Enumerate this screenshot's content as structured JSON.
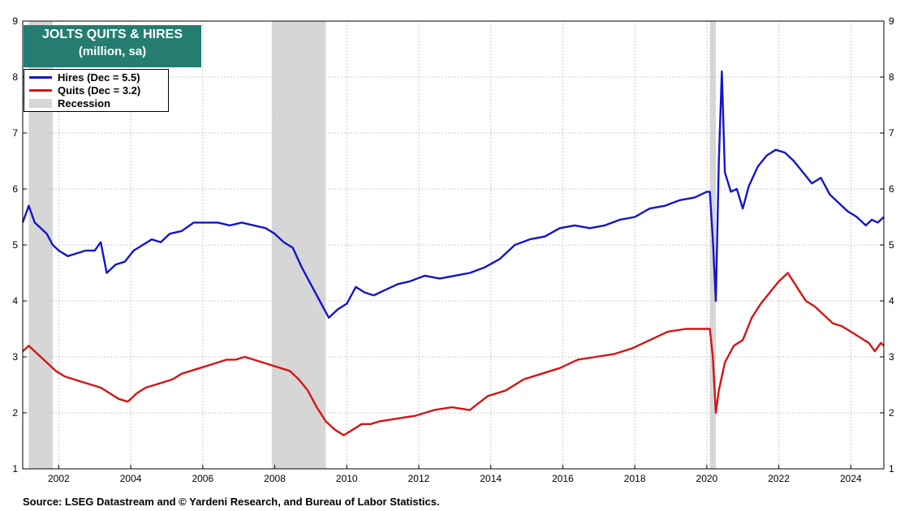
{
  "chart_data": {
    "type": "line",
    "title": "JOLTS QUITS & HIRES",
    "subtitle": "(million, sa)",
    "ylim": [
      1,
      9
    ],
    "yticks": [
      "1",
      "2",
      "3",
      "4",
      "5",
      "6",
      "7",
      "8",
      "9"
    ],
    "xlim": [
      "2001-01",
      "2024-12"
    ],
    "xticks": [
      "2002",
      "2004",
      "2006",
      "2008",
      "2010",
      "2012",
      "2014",
      "2016",
      "2018",
      "2020",
      "2022",
      "2024"
    ],
    "grid": true,
    "legend_position": "top-left",
    "recession_label": "Recession",
    "recession_color": "#d6d6d6",
    "recessions": [
      [
        "2001-03",
        "2001-11"
      ],
      [
        "2007-12",
        "2009-06"
      ],
      [
        "2020-02",
        "2020-04"
      ]
    ],
    "series": [
      {
        "name": "Hires (Dec = 5.5)",
        "color": "#1414c8",
        "points": [
          [
            "2001-01",
            5.4
          ],
          [
            "2001-03",
            5.7
          ],
          [
            "2001-05",
            5.4
          ],
          [
            "2001-07",
            5.3
          ],
          [
            "2001-09",
            5.2
          ],
          [
            "2001-11",
            5.0
          ],
          [
            "2002-01",
            4.9
          ],
          [
            "2002-04",
            4.8
          ],
          [
            "2002-07",
            4.85
          ],
          [
            "2002-10",
            4.9
          ],
          [
            "2003-01",
            4.9
          ],
          [
            "2003-03",
            5.05
          ],
          [
            "2003-05",
            4.5
          ],
          [
            "2003-08",
            4.65
          ],
          [
            "2003-11",
            4.7
          ],
          [
            "2004-02",
            4.9
          ],
          [
            "2004-05",
            5.0
          ],
          [
            "2004-08",
            5.1
          ],
          [
            "2004-11",
            5.05
          ],
          [
            "2005-02",
            5.2
          ],
          [
            "2005-06",
            5.25
          ],
          [
            "2005-10",
            5.4
          ],
          [
            "2006-02",
            5.4
          ],
          [
            "2006-06",
            5.4
          ],
          [
            "2006-10",
            5.35
          ],
          [
            "2007-02",
            5.4
          ],
          [
            "2007-06",
            5.35
          ],
          [
            "2007-10",
            5.3
          ],
          [
            "2008-01",
            5.2
          ],
          [
            "2008-04",
            5.05
          ],
          [
            "2008-07",
            4.95
          ],
          [
            "2008-10",
            4.6
          ],
          [
            "2009-01",
            4.3
          ],
          [
            "2009-04",
            4.0
          ],
          [
            "2009-07",
            3.7
          ],
          [
            "2009-10",
            3.85
          ],
          [
            "2010-01",
            3.95
          ],
          [
            "2010-04",
            4.25
          ],
          [
            "2010-07",
            4.15
          ],
          [
            "2010-10",
            4.1
          ],
          [
            "2011-02",
            4.2
          ],
          [
            "2011-06",
            4.3
          ],
          [
            "2011-10",
            4.35
          ],
          [
            "2012-03",
            4.45
          ],
          [
            "2012-08",
            4.4
          ],
          [
            "2013-01",
            4.45
          ],
          [
            "2013-06",
            4.5
          ],
          [
            "2013-11",
            4.6
          ],
          [
            "2014-04",
            4.75
          ],
          [
            "2014-09",
            5.0
          ],
          [
            "2015-02",
            5.1
          ],
          [
            "2015-07",
            5.15
          ],
          [
            "2015-12",
            5.3
          ],
          [
            "2016-05",
            5.35
          ],
          [
            "2016-10",
            5.3
          ],
          [
            "2017-03",
            5.35
          ],
          [
            "2017-08",
            5.45
          ],
          [
            "2018-01",
            5.5
          ],
          [
            "2018-06",
            5.65
          ],
          [
            "2018-11",
            5.7
          ],
          [
            "2019-04",
            5.8
          ],
          [
            "2019-09",
            5.85
          ],
          [
            "2020-01",
            5.95
          ],
          [
            "2020-02",
            5.95
          ],
          [
            "2020-03",
            5.1
          ],
          [
            "2020-04",
            4.0
          ],
          [
            "2020-05",
            6.5
          ],
          [
            "2020-06",
            8.1
          ],
          [
            "2020-07",
            6.3
          ],
          [
            "2020-09",
            5.95
          ],
          [
            "2020-11",
            6.0
          ],
          [
            "2021-01",
            5.65
          ],
          [
            "2021-03",
            6.05
          ],
          [
            "2021-06",
            6.4
          ],
          [
            "2021-09",
            6.6
          ],
          [
            "2021-12",
            6.7
          ],
          [
            "2022-03",
            6.65
          ],
          [
            "2022-06",
            6.5
          ],
          [
            "2022-09",
            6.3
          ],
          [
            "2022-12",
            6.1
          ],
          [
            "2023-03",
            6.2
          ],
          [
            "2023-06",
            5.9
          ],
          [
            "2023-09",
            5.75
          ],
          [
            "2023-12",
            5.6
          ],
          [
            "2024-03",
            5.5
          ],
          [
            "2024-06",
            5.35
          ],
          [
            "2024-08",
            5.45
          ],
          [
            "2024-10",
            5.4
          ],
          [
            "2024-12",
            5.5
          ]
        ]
      },
      {
        "name": "Quits (Dec = 3.2)",
        "color": "#d41414",
        "points": [
          [
            "2001-01",
            3.1
          ],
          [
            "2001-03",
            3.2
          ],
          [
            "2001-06",
            3.05
          ],
          [
            "2001-09",
            2.9
          ],
          [
            "2001-12",
            2.75
          ],
          [
            "2002-03",
            2.65
          ],
          [
            "2002-06",
            2.6
          ],
          [
            "2002-09",
            2.55
          ],
          [
            "2002-12",
            2.5
          ],
          [
            "2003-03",
            2.45
          ],
          [
            "2003-06",
            2.35
          ],
          [
            "2003-09",
            2.25
          ],
          [
            "2003-12",
            2.2
          ],
          [
            "2004-03",
            2.35
          ],
          [
            "2004-06",
            2.45
          ],
          [
            "2004-09",
            2.5
          ],
          [
            "2004-12",
            2.55
          ],
          [
            "2005-03",
            2.6
          ],
          [
            "2005-06",
            2.7
          ],
          [
            "2005-09",
            2.75
          ],
          [
            "2005-12",
            2.8
          ],
          [
            "2006-03",
            2.85
          ],
          [
            "2006-06",
            2.9
          ],
          [
            "2006-09",
            2.95
          ],
          [
            "2006-12",
            2.95
          ],
          [
            "2007-03",
            3.0
          ],
          [
            "2007-06",
            2.95
          ],
          [
            "2007-09",
            2.9
          ],
          [
            "2007-12",
            2.85
          ],
          [
            "2008-03",
            2.8
          ],
          [
            "2008-06",
            2.75
          ],
          [
            "2008-09",
            2.6
          ],
          [
            "2008-12",
            2.4
          ],
          [
            "2009-03",
            2.1
          ],
          [
            "2009-06",
            1.85
          ],
          [
            "2009-09",
            1.7
          ],
          [
            "2009-12",
            1.6
          ],
          [
            "2010-03",
            1.7
          ],
          [
            "2010-06",
            1.8
          ],
          [
            "2010-09",
            1.8
          ],
          [
            "2010-12",
            1.85
          ],
          [
            "2011-06",
            1.9
          ],
          [
            "2011-12",
            1.95
          ],
          [
            "2012-06",
            2.05
          ],
          [
            "2012-12",
            2.1
          ],
          [
            "2013-06",
            2.05
          ],
          [
            "2013-12",
            2.3
          ],
          [
            "2014-06",
            2.4
          ],
          [
            "2014-12",
            2.6
          ],
          [
            "2015-06",
            2.7
          ],
          [
            "2015-12",
            2.8
          ],
          [
            "2016-06",
            2.95
          ],
          [
            "2016-12",
            3.0
          ],
          [
            "2017-06",
            3.05
          ],
          [
            "2017-12",
            3.15
          ],
          [
            "2018-06",
            3.3
          ],
          [
            "2018-12",
            3.45
          ],
          [
            "2019-06",
            3.5
          ],
          [
            "2019-12",
            3.5
          ],
          [
            "2020-02",
            3.5
          ],
          [
            "2020-03",
            3.0
          ],
          [
            "2020-04",
            2.0
          ],
          [
            "2020-05",
            2.4
          ],
          [
            "2020-07",
            2.9
          ],
          [
            "2020-10",
            3.2
          ],
          [
            "2021-01",
            3.3
          ],
          [
            "2021-04",
            3.7
          ],
          [
            "2021-07",
            3.95
          ],
          [
            "2021-10",
            4.15
          ],
          [
            "2022-01",
            4.35
          ],
          [
            "2022-04",
            4.5
          ],
          [
            "2022-07",
            4.25
          ],
          [
            "2022-10",
            4.0
          ],
          [
            "2023-01",
            3.9
          ],
          [
            "2023-04",
            3.75
          ],
          [
            "2023-07",
            3.6
          ],
          [
            "2023-10",
            3.55
          ],
          [
            "2024-01",
            3.45
          ],
          [
            "2024-04",
            3.35
          ],
          [
            "2024-07",
            3.25
          ],
          [
            "2024-09",
            3.1
          ],
          [
            "2024-11",
            3.25
          ],
          [
            "2024-12",
            3.2
          ]
        ]
      }
    ],
    "source": "Source: LSEG Datastream and © Yardeni Research, and Bureau of Labor Statistics."
  }
}
